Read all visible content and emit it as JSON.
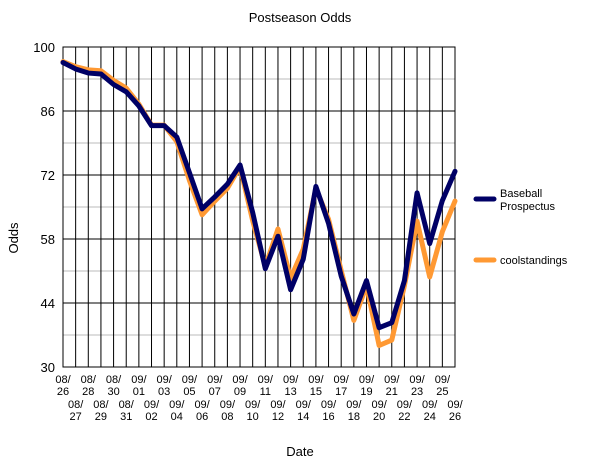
{
  "chart_data": {
    "type": "line",
    "title": "Postseason Odds",
    "xlabel": "Date",
    "ylabel": "Odds",
    "ylim": [
      30,
      100
    ],
    "yticks": [
      30,
      44,
      58,
      72,
      86,
      100
    ],
    "grid": true,
    "legend_position": "right",
    "x": [
      "08/26",
      "08/27",
      "08/28",
      "08/29",
      "08/30",
      "08/31",
      "09/01",
      "09/02",
      "09/03",
      "09/04",
      "09/05",
      "09/06",
      "09/07",
      "09/08",
      "09/09",
      "09/10",
      "09/11",
      "09/12",
      "09/13",
      "09/14",
      "09/15",
      "09/16",
      "09/17",
      "09/18",
      "09/19",
      "09/20",
      "09/21",
      "09/22",
      "09/23",
      "09/24",
      "09/25",
      "09/26"
    ],
    "x_tick_lines": [
      [
        "08/",
        "26"
      ],
      [
        "08/",
        "27"
      ],
      [
        "08/",
        "28"
      ],
      [
        "08/",
        "29"
      ],
      [
        "08/",
        "30"
      ],
      [
        "08/",
        "31"
      ],
      [
        "09/",
        "01"
      ],
      [
        "09/",
        "02"
      ],
      [
        "09/",
        "03"
      ],
      [
        "09/",
        "04"
      ],
      [
        "09/",
        "05"
      ],
      [
        "09/",
        "06"
      ],
      [
        "09/",
        "07"
      ],
      [
        "09/",
        "08"
      ],
      [
        "09/",
        "09"
      ],
      [
        "09/",
        "10"
      ],
      [
        "09/",
        "11"
      ],
      [
        "09/",
        "12"
      ],
      [
        "09/",
        "13"
      ],
      [
        "09/",
        "14"
      ],
      [
        "09/",
        "15"
      ],
      [
        "09/",
        "16"
      ],
      [
        "09/",
        "17"
      ],
      [
        "09/",
        "18"
      ],
      [
        "09/",
        "19"
      ],
      [
        "09/",
        "20"
      ],
      [
        "09/",
        "21"
      ],
      [
        "09/",
        "22"
      ],
      [
        "09/",
        "23"
      ],
      [
        "09/",
        "24"
      ],
      [
        "09/",
        "25"
      ],
      [
        "09/",
        "26"
      ]
    ],
    "series": [
      {
        "name": "Baseball Prospectus",
        "name_lines": [
          "Baseball",
          "Prospectus"
        ],
        "color": "#000066",
        "values": [
          96.6,
          95.2,
          94.3,
          94.1,
          91.8,
          90.2,
          87.1,
          82.8,
          82.8,
          80.3,
          72.5,
          64.6,
          67.2,
          70.0,
          74.2,
          63.8,
          51.5,
          58.6,
          46.9,
          53.6,
          69.5,
          61.4,
          49.9,
          41.6,
          48.9,
          38.6,
          39.7,
          48.9,
          68.1,
          57.0,
          66.4,
          72.8
        ]
      },
      {
        "name": "coolstandings",
        "name_lines": [
          "coolstandings"
        ],
        "color": "#FF9933",
        "values": [
          96.8,
          95.7,
          95.0,
          94.8,
          92.7,
          91.0,
          87.5,
          82.9,
          82.9,
          79.3,
          70.8,
          63.3,
          66.3,
          69.1,
          73.8,
          62.0,
          52.0,
          60.2,
          49.4,
          55.8,
          69.1,
          62.3,
          51.1,
          40.2,
          47.8,
          34.7,
          35.9,
          47.8,
          61.9,
          49.7,
          59.6,
          66.3
        ]
      }
    ]
  }
}
